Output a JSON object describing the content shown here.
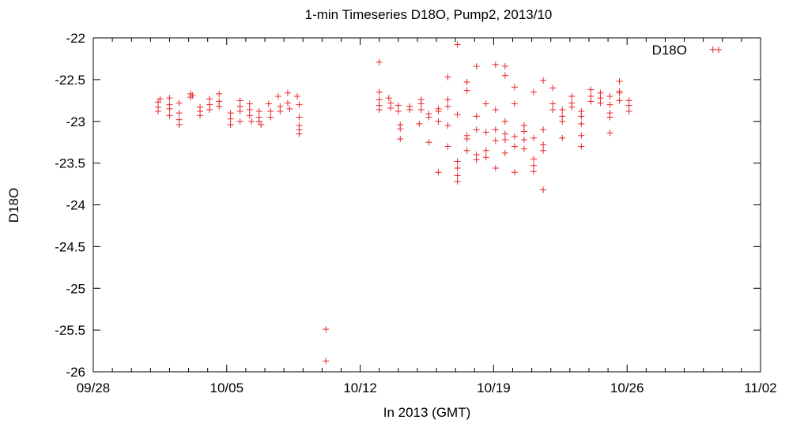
{
  "chart_data": {
    "type": "scatter",
    "title": "1-min Timeseries D18O, Pump2, 2013/10",
    "xlabel": "In 2013 (GMT)",
    "ylabel": "D18O",
    "x_axis_unit": "day of 2013-09-28",
    "xlim": [
      0,
      35
    ],
    "ylim": [
      -26,
      -22
    ],
    "x_tick_labels": [
      "09/28",
      "10/05",
      "10/12",
      "10/19",
      "10/26",
      "11/02"
    ],
    "y_tick_labels": [
      "-22",
      "-22.5",
      "-23",
      "-23.5",
      "-24",
      "-24.5",
      "-25",
      "-25.5",
      "-26"
    ],
    "y_ticks": [
      -22,
      -22.5,
      -23,
      -23.5,
      -24,
      -24.5,
      -25,
      -25.5,
      -26
    ],
    "grid": false,
    "legend_position": "top-right",
    "marker_color": "#e8262b",
    "series": [
      {
        "name": "D18O",
        "marker": "plus",
        "points": [
          [
            3.4,
            -22.77
          ],
          [
            3.4,
            -22.83
          ],
          [
            3.4,
            -22.88
          ],
          [
            3.5,
            -22.73
          ],
          [
            4.0,
            -22.72
          ],
          [
            4.0,
            -22.8
          ],
          [
            4.0,
            -22.85
          ],
          [
            4.0,
            -22.93
          ],
          [
            4.5,
            -22.78
          ],
          [
            4.5,
            -22.9
          ],
          [
            4.5,
            -22.98
          ],
          [
            4.5,
            -23.04
          ],
          [
            5.1,
            -22.67
          ],
          [
            5.1,
            -22.71
          ],
          [
            5.2,
            -22.69
          ],
          [
            5.6,
            -22.83
          ],
          [
            5.6,
            -22.88
          ],
          [
            5.6,
            -22.93
          ],
          [
            6.1,
            -22.73
          ],
          [
            6.1,
            -22.8
          ],
          [
            6.1,
            -22.86
          ],
          [
            6.6,
            -22.67
          ],
          [
            6.6,
            -22.76
          ],
          [
            6.6,
            -22.82
          ],
          [
            7.2,
            -22.9
          ],
          [
            7.2,
            -22.97
          ],
          [
            7.2,
            -23.04
          ],
          [
            7.7,
            -22.75
          ],
          [
            7.7,
            -22.82
          ],
          [
            7.7,
            -22.88
          ],
          [
            7.7,
            -23.0
          ],
          [
            8.2,
            -22.79
          ],
          [
            8.2,
            -22.86
          ],
          [
            8.2,
            -22.93
          ],
          [
            8.3,
            -23.0
          ],
          [
            8.7,
            -22.88
          ],
          [
            8.7,
            -22.95
          ],
          [
            8.7,
            -23.0
          ],
          [
            8.8,
            -23.04
          ],
          [
            9.2,
            -22.79
          ],
          [
            9.3,
            -22.88
          ],
          [
            9.3,
            -22.95
          ],
          [
            9.7,
            -22.7
          ],
          [
            9.8,
            -22.82
          ],
          [
            9.8,
            -22.88
          ],
          [
            10.2,
            -22.66
          ],
          [
            10.2,
            -22.78
          ],
          [
            10.3,
            -22.85
          ],
          [
            10.7,
            -22.7
          ],
          [
            10.8,
            -22.8
          ],
          [
            10.8,
            -22.95
          ],
          [
            10.8,
            -23.05
          ],
          [
            10.8,
            -23.1
          ],
          [
            10.8,
            -23.15
          ],
          [
            12.2,
            -25.49
          ],
          [
            12.2,
            -25.87
          ],
          [
            15.0,
            -22.29
          ],
          [
            15.0,
            -22.65
          ],
          [
            15.0,
            -22.74
          ],
          [
            15.0,
            -22.81
          ],
          [
            15.0,
            -22.86
          ],
          [
            15.5,
            -22.72
          ],
          [
            15.6,
            -22.78
          ],
          [
            15.6,
            -22.84
          ],
          [
            16.0,
            -22.81
          ],
          [
            16.0,
            -22.88
          ],
          [
            16.1,
            -23.04
          ],
          [
            16.1,
            -23.09
          ],
          [
            16.1,
            -23.21
          ],
          [
            16.6,
            -22.82
          ],
          [
            16.6,
            -22.86
          ],
          [
            17.2,
            -22.74
          ],
          [
            17.2,
            -22.79
          ],
          [
            17.2,
            -22.86
          ],
          [
            17.1,
            -23.03
          ],
          [
            17.6,
            -22.91
          ],
          [
            17.6,
            -22.95
          ],
          [
            17.6,
            -23.25
          ],
          [
            18.1,
            -22.85
          ],
          [
            18.1,
            -22.88
          ],
          [
            18.1,
            -23.0
          ],
          [
            18.1,
            -23.61
          ],
          [
            18.6,
            -22.47
          ],
          [
            18.6,
            -22.74
          ],
          [
            18.6,
            -22.82
          ],
          [
            18.6,
            -23.05
          ],
          [
            18.6,
            -23.3
          ],
          [
            19.1,
            -22.08
          ],
          [
            19.1,
            -22.92
          ],
          [
            19.1,
            -23.48
          ],
          [
            19.1,
            -23.56
          ],
          [
            19.1,
            -23.65
          ],
          [
            19.1,
            -23.72
          ],
          [
            19.6,
            -22.53
          ],
          [
            19.6,
            -22.63
          ],
          [
            19.6,
            -23.17
          ],
          [
            19.6,
            -23.21
          ],
          [
            19.6,
            -23.35
          ],
          [
            20.1,
            -22.34
          ],
          [
            20.1,
            -22.94
          ],
          [
            20.1,
            -23.1
          ],
          [
            20.1,
            -23.4
          ],
          [
            20.1,
            -23.46
          ],
          [
            20.6,
            -22.79
          ],
          [
            20.6,
            -23.13
          ],
          [
            20.6,
            -23.35
          ],
          [
            20.6,
            -23.43
          ],
          [
            21.1,
            -22.32
          ],
          [
            21.1,
            -22.86
          ],
          [
            21.1,
            -23.1
          ],
          [
            21.1,
            -23.23
          ],
          [
            21.1,
            -23.56
          ],
          [
            21.6,
            -22.34
          ],
          [
            21.6,
            -22.45
          ],
          [
            21.6,
            -23.0
          ],
          [
            21.6,
            -23.15
          ],
          [
            21.6,
            -23.22
          ],
          [
            21.6,
            -23.38
          ],
          [
            22.1,
            -22.59
          ],
          [
            22.1,
            -22.79
          ],
          [
            22.1,
            -23.18
          ],
          [
            22.1,
            -23.3
          ],
          [
            22.1,
            -23.61
          ],
          [
            22.6,
            -23.05
          ],
          [
            22.6,
            -23.12
          ],
          [
            22.6,
            -23.22
          ],
          [
            22.6,
            -23.33
          ],
          [
            23.1,
            -22.65
          ],
          [
            23.1,
            -23.2
          ],
          [
            23.1,
            -23.45
          ],
          [
            23.1,
            -23.53
          ],
          [
            23.1,
            -23.6
          ],
          [
            23.6,
            -22.51
          ],
          [
            23.6,
            -23.1
          ],
          [
            23.6,
            -23.28
          ],
          [
            23.6,
            -23.35
          ],
          [
            23.6,
            -23.82
          ],
          [
            24.1,
            -22.6
          ],
          [
            24.1,
            -22.79
          ],
          [
            24.1,
            -22.86
          ],
          [
            24.6,
            -22.86
          ],
          [
            24.6,
            -22.94
          ],
          [
            24.6,
            -23.0
          ],
          [
            24.6,
            -23.2
          ],
          [
            25.1,
            -22.7
          ],
          [
            25.1,
            -22.78
          ],
          [
            25.1,
            -22.83
          ],
          [
            25.6,
            -22.88
          ],
          [
            25.6,
            -22.94
          ],
          [
            25.6,
            -23.03
          ],
          [
            25.6,
            -23.17
          ],
          [
            25.6,
            -23.3
          ],
          [
            26.1,
            -22.62
          ],
          [
            26.1,
            -22.7
          ],
          [
            26.1,
            -22.76
          ],
          [
            26.6,
            -22.66
          ],
          [
            26.6,
            -22.72
          ],
          [
            26.6,
            -22.78
          ],
          [
            27.1,
            -22.7
          ],
          [
            27.1,
            -22.8
          ],
          [
            27.1,
            -22.9
          ],
          [
            27.1,
            -22.95
          ],
          [
            27.1,
            -23.14
          ],
          [
            27.6,
            -22.52
          ],
          [
            27.6,
            -22.64
          ],
          [
            27.6,
            -22.66
          ],
          [
            27.6,
            -22.75
          ],
          [
            28.1,
            -22.75
          ],
          [
            28.1,
            -22.81
          ],
          [
            28.1,
            -22.88
          ],
          [
            32.5,
            -22.14
          ]
        ]
      }
    ]
  }
}
